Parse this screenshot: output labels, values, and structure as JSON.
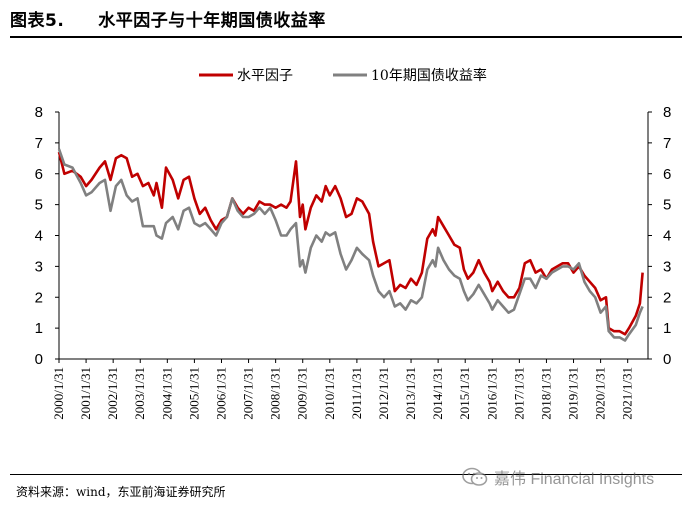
{
  "figure": {
    "label": "图表5.",
    "title": "水平因子与十年期国债收益率",
    "source": "资料来源：wind，东亚前海证券研究所",
    "watermark": "嘉伟 Financial Insights"
  },
  "colors": {
    "series_red": "#c00000",
    "series_gray": "#808080",
    "axis": "#000000"
  },
  "chart_data": {
    "type": "line",
    "title": "水平因子与十年期国债收益率",
    "legend_position": "top-center",
    "grid": false,
    "ylim": [
      0,
      8
    ],
    "yticks": [
      0,
      1,
      2,
      3,
      4,
      5,
      6,
      7,
      8
    ],
    "ylabel_left": "",
    "ylabel_right": "",
    "xlim": [
      2000.0,
      2021.75
    ],
    "x_tick_labels": [
      "2000/1/31",
      "2001/1/31",
      "2002/1/31",
      "2003/1/31",
      "2004/1/31",
      "2005/1/31",
      "2006/1/31",
      "2007/1/31",
      "2008/1/31",
      "2009/1/31",
      "2010/1/31",
      "2011/1/31",
      "2012/1/31",
      "2013/1/31",
      "2014/1/31",
      "2015/1/31",
      "2016/1/31",
      "2017/1/31",
      "2018/1/31",
      "2019/1/31",
      "2020/1/31",
      "2021/1/31"
    ],
    "x_tick_values": [
      2000,
      2001,
      2002,
      2003,
      2004,
      2005,
      2006,
      2007,
      2008,
      2009,
      2010,
      2011,
      2012,
      2013,
      2014,
      2015,
      2016,
      2017,
      2018,
      2019,
      2020,
      2021
    ],
    "series": [
      {
        "name": "水平因子",
        "color": "#c00000",
        "points": [
          [
            2000.0,
            6.7
          ],
          [
            2000.2,
            6.0
          ],
          [
            2000.5,
            6.1
          ],
          [
            2000.8,
            5.9
          ],
          [
            2001.0,
            5.6
          ],
          [
            2001.2,
            5.8
          ],
          [
            2001.5,
            6.2
          ],
          [
            2001.7,
            6.4
          ],
          [
            2001.9,
            5.8
          ],
          [
            2002.1,
            6.5
          ],
          [
            2002.3,
            6.6
          ],
          [
            2002.5,
            6.5
          ],
          [
            2002.7,
            5.9
          ],
          [
            2002.9,
            6.0
          ],
          [
            2003.1,
            5.6
          ],
          [
            2003.3,
            5.7
          ],
          [
            2003.5,
            5.3
          ],
          [
            2003.6,
            5.7
          ],
          [
            2003.8,
            4.9
          ],
          [
            2003.95,
            6.2
          ],
          [
            2004.2,
            5.8
          ],
          [
            2004.4,
            5.2
          ],
          [
            2004.6,
            5.8
          ],
          [
            2004.8,
            5.9
          ],
          [
            2005.0,
            5.2
          ],
          [
            2005.2,
            4.7
          ],
          [
            2005.4,
            4.9
          ],
          [
            2005.6,
            4.5
          ],
          [
            2005.8,
            4.2
          ],
          [
            2006.0,
            4.5
          ],
          [
            2006.2,
            4.6
          ],
          [
            2006.4,
            5.2
          ],
          [
            2006.6,
            4.9
          ],
          [
            2006.8,
            4.7
          ],
          [
            2007.0,
            4.9
          ],
          [
            2007.2,
            4.8
          ],
          [
            2007.4,
            5.1
          ],
          [
            2007.6,
            5.0
          ],
          [
            2007.8,
            5.0
          ],
          [
            2008.0,
            4.9
          ],
          [
            2008.2,
            5.0
          ],
          [
            2008.4,
            4.9
          ],
          [
            2008.55,
            5.1
          ],
          [
            2008.75,
            6.4
          ],
          [
            2008.9,
            4.6
          ],
          [
            2009.0,
            5.0
          ],
          [
            2009.1,
            4.2
          ],
          [
            2009.3,
            4.9
          ],
          [
            2009.5,
            5.3
          ],
          [
            2009.7,
            5.1
          ],
          [
            2009.85,
            5.6
          ],
          [
            2010.0,
            5.3
          ],
          [
            2010.2,
            5.6
          ],
          [
            2010.4,
            5.2
          ],
          [
            2010.6,
            4.6
          ],
          [
            2010.8,
            4.7
          ],
          [
            2011.0,
            5.2
          ],
          [
            2011.2,
            5.1
          ],
          [
            2011.45,
            4.7
          ],
          [
            2011.6,
            3.8
          ],
          [
            2011.8,
            3.0
          ],
          [
            2012.0,
            3.1
          ],
          [
            2012.2,
            3.2
          ],
          [
            2012.4,
            2.2
          ],
          [
            2012.6,
            2.4
          ],
          [
            2012.8,
            2.3
          ],
          [
            2013.0,
            2.6
          ],
          [
            2013.2,
            2.4
          ],
          [
            2013.4,
            2.8
          ],
          [
            2013.6,
            3.9
          ],
          [
            2013.8,
            4.2
          ],
          [
            2013.9,
            4.0
          ],
          [
            2014.0,
            4.6
          ],
          [
            2014.2,
            4.3
          ],
          [
            2014.4,
            4.0
          ],
          [
            2014.6,
            3.7
          ],
          [
            2014.8,
            3.6
          ],
          [
            2014.95,
            2.9
          ],
          [
            2015.1,
            2.6
          ],
          [
            2015.3,
            2.8
          ],
          [
            2015.5,
            3.2
          ],
          [
            2015.7,
            2.8
          ],
          [
            2015.9,
            2.5
          ],
          [
            2016.0,
            2.2
          ],
          [
            2016.2,
            2.5
          ],
          [
            2016.4,
            2.2
          ],
          [
            2016.6,
            2.0
          ],
          [
            2016.8,
            2.0
          ],
          [
            2017.0,
            2.3
          ],
          [
            2017.2,
            3.1
          ],
          [
            2017.4,
            3.2
          ],
          [
            2017.6,
            2.8
          ],
          [
            2017.8,
            2.9
          ],
          [
            2018.0,
            2.6
          ],
          [
            2018.2,
            2.9
          ],
          [
            2018.4,
            3.0
          ],
          [
            2018.6,
            3.1
          ],
          [
            2018.8,
            3.1
          ],
          [
            2019.0,
            2.8
          ],
          [
            2019.2,
            3.0
          ],
          [
            2019.4,
            2.7
          ],
          [
            2019.6,
            2.5
          ],
          [
            2019.8,
            2.3
          ],
          [
            2020.0,
            1.9
          ],
          [
            2020.2,
            2.0
          ],
          [
            2020.3,
            1.0
          ],
          [
            2020.5,
            0.9
          ],
          [
            2020.7,
            0.9
          ],
          [
            2020.9,
            0.8
          ],
          [
            2021.05,
            1.0
          ],
          [
            2021.3,
            1.4
          ],
          [
            2021.45,
            1.8
          ],
          [
            2021.55,
            2.8
          ]
        ]
      },
      {
        "name": "10年期国债收益率",
        "color": "#808080",
        "points": [
          [
            2000.0,
            6.8
          ],
          [
            2000.2,
            6.3
          ],
          [
            2000.5,
            6.2
          ],
          [
            2000.8,
            5.7
          ],
          [
            2001.0,
            5.3
          ],
          [
            2001.2,
            5.4
          ],
          [
            2001.5,
            5.7
          ],
          [
            2001.7,
            5.8
          ],
          [
            2001.9,
            4.8
          ],
          [
            2002.1,
            5.6
          ],
          [
            2002.3,
            5.8
          ],
          [
            2002.5,
            5.3
          ],
          [
            2002.7,
            5.1
          ],
          [
            2002.9,
            5.2
          ],
          [
            2003.1,
            4.3
          ],
          [
            2003.3,
            4.3
          ],
          [
            2003.5,
            4.3
          ],
          [
            2003.6,
            4.0
          ],
          [
            2003.8,
            3.9
          ],
          [
            2003.95,
            4.4
          ],
          [
            2004.2,
            4.6
          ],
          [
            2004.4,
            4.2
          ],
          [
            2004.6,
            4.8
          ],
          [
            2004.8,
            4.9
          ],
          [
            2005.0,
            4.4
          ],
          [
            2005.2,
            4.3
          ],
          [
            2005.4,
            4.4
          ],
          [
            2005.6,
            4.2
          ],
          [
            2005.8,
            4.0
          ],
          [
            2006.0,
            4.4
          ],
          [
            2006.2,
            4.6
          ],
          [
            2006.4,
            5.2
          ],
          [
            2006.6,
            4.8
          ],
          [
            2006.8,
            4.6
          ],
          [
            2007.0,
            4.6
          ],
          [
            2007.2,
            4.7
          ],
          [
            2007.4,
            4.9
          ],
          [
            2007.6,
            4.7
          ],
          [
            2007.8,
            4.9
          ],
          [
            2008.0,
            4.5
          ],
          [
            2008.2,
            4.0
          ],
          [
            2008.4,
            4.0
          ],
          [
            2008.55,
            4.2
          ],
          [
            2008.75,
            4.4
          ],
          [
            2008.9,
            3.0
          ],
          [
            2009.0,
            3.2
          ],
          [
            2009.1,
            2.8
          ],
          [
            2009.3,
            3.6
          ],
          [
            2009.5,
            4.0
          ],
          [
            2009.7,
            3.8
          ],
          [
            2009.85,
            4.1
          ],
          [
            2010.0,
            4.0
          ],
          [
            2010.2,
            4.1
          ],
          [
            2010.4,
            3.4
          ],
          [
            2010.6,
            2.9
          ],
          [
            2010.8,
            3.2
          ],
          [
            2011.0,
            3.6
          ],
          [
            2011.2,
            3.4
          ],
          [
            2011.45,
            3.2
          ],
          [
            2011.6,
            2.7
          ],
          [
            2011.8,
            2.2
          ],
          [
            2012.0,
            2.0
          ],
          [
            2012.2,
            2.2
          ],
          [
            2012.4,
            1.7
          ],
          [
            2012.6,
            1.8
          ],
          [
            2012.8,
            1.6
          ],
          [
            2013.0,
            1.9
          ],
          [
            2013.2,
            1.8
          ],
          [
            2013.4,
            2.0
          ],
          [
            2013.6,
            2.9
          ],
          [
            2013.8,
            3.2
          ],
          [
            2013.9,
            3.0
          ],
          [
            2014.0,
            3.6
          ],
          [
            2014.2,
            3.2
          ],
          [
            2014.4,
            2.9
          ],
          [
            2014.6,
            2.7
          ],
          [
            2014.8,
            2.6
          ],
          [
            2014.95,
            2.2
          ],
          [
            2015.1,
            1.9
          ],
          [
            2015.3,
            2.1
          ],
          [
            2015.5,
            2.4
          ],
          [
            2015.7,
            2.1
          ],
          [
            2015.9,
            1.8
          ],
          [
            2016.0,
            1.6
          ],
          [
            2016.2,
            1.9
          ],
          [
            2016.4,
            1.7
          ],
          [
            2016.6,
            1.5
          ],
          [
            2016.8,
            1.6
          ],
          [
            2017.0,
            2.1
          ],
          [
            2017.2,
            2.6
          ],
          [
            2017.4,
            2.6
          ],
          [
            2017.6,
            2.3
          ],
          [
            2017.8,
            2.7
          ],
          [
            2018.0,
            2.6
          ],
          [
            2018.2,
            2.8
          ],
          [
            2018.4,
            2.9
          ],
          [
            2018.6,
            3.0
          ],
          [
            2018.8,
            3.0
          ],
          [
            2019.0,
            2.9
          ],
          [
            2019.2,
            3.1
          ],
          [
            2019.4,
            2.5
          ],
          [
            2019.6,
            2.2
          ],
          [
            2019.8,
            2.0
          ],
          [
            2020.0,
            1.5
          ],
          [
            2020.2,
            1.7
          ],
          [
            2020.3,
            0.9
          ],
          [
            2020.5,
            0.7
          ],
          [
            2020.7,
            0.7
          ],
          [
            2020.9,
            0.6
          ],
          [
            2021.05,
            0.8
          ],
          [
            2021.3,
            1.1
          ],
          [
            2021.45,
            1.5
          ],
          [
            2021.55,
            1.7
          ]
        ]
      }
    ]
  }
}
